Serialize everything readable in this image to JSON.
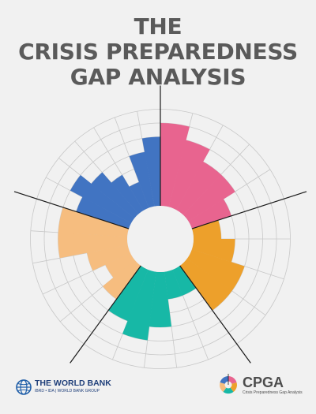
{
  "title": {
    "line1": "THE",
    "line2": "CRISIS PREPAREDNESS",
    "line3": "GAP ANALYSIS"
  },
  "colors": {
    "background": "#f1f1f1",
    "title": "#5a5a5a",
    "grid": "#c8c8c8",
    "axis": "#1a1a1a",
    "pink": "#e8648f",
    "orange": "#eda02b",
    "teal": "#17b8a6",
    "peach": "#f6bd7f",
    "blue": "#4174c2"
  },
  "chart_data": {
    "type": "polar-bar",
    "rings": 7,
    "sectors": [
      {
        "color": "pink",
        "values": [
          6,
          5,
          4,
          4,
          3
        ]
      },
      {
        "color": "orange",
        "values": [
          2,
          3,
          4,
          4
        ]
      },
      {
        "color": "teal",
        "values": [
          2,
          2,
          4,
          5,
          4
        ]
      },
      {
        "color": "peach",
        "values": [
          3,
          2,
          3,
          5,
          5
        ]
      },
      {
        "color": "blue",
        "values": [
          4,
          5,
          4,
          3,
          2,
          4,
          5
        ]
      }
    ]
  },
  "logos": {
    "world_bank": {
      "name": "THE WORLD BANK",
      "subtitle": "IBRD • IDA | WORLD BANK GROUP"
    },
    "cpga": {
      "name": "CPGA",
      "subtitle": "Crisis Preparedness Gap Analysis"
    }
  }
}
